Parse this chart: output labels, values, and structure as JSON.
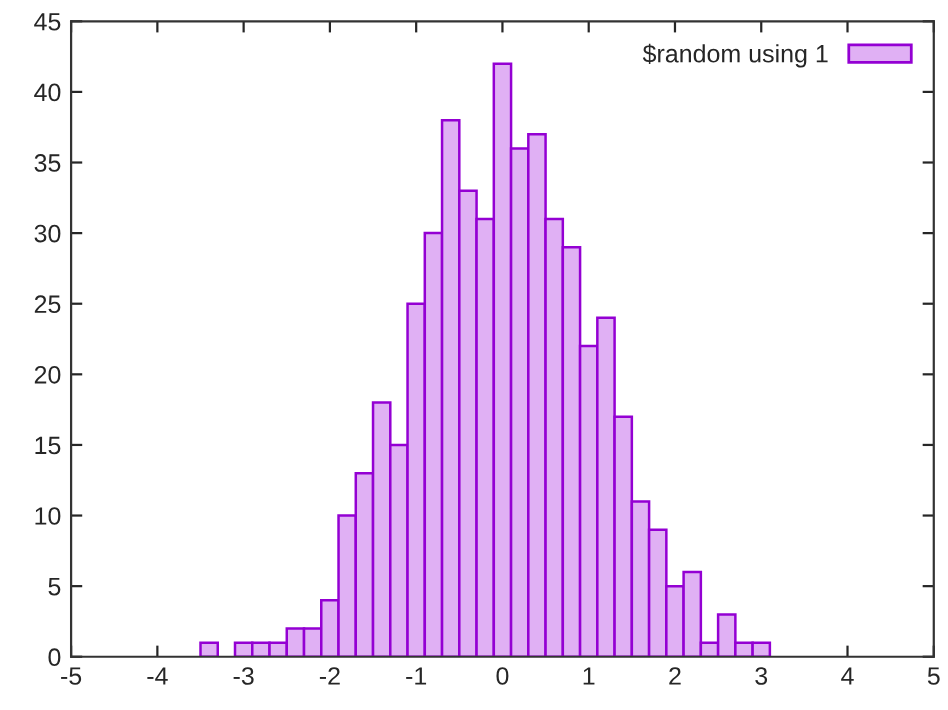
{
  "chart_data": {
    "type": "histogram",
    "bins": [
      -3.5,
      -3.3,
      -3.1,
      -2.9,
      -2.7,
      -2.5,
      -2.3,
      -2.1,
      -1.9,
      -1.7,
      -1.5,
      -1.3,
      -1.1,
      -0.9,
      -0.7,
      -0.5,
      -0.3,
      -0.1,
      0.1,
      0.3,
      0.5,
      0.7,
      0.9,
      1.1,
      1.3,
      1.5,
      1.7,
      1.9,
      2.1,
      2.3,
      2.5,
      2.7,
      2.9,
      3.1
    ],
    "series": [
      {
        "name": "$random using 1",
        "color": "#e0b0f4",
        "values": [
          1,
          0,
          1,
          1,
          1,
          2,
          2,
          4,
          10,
          13,
          18,
          15,
          25,
          30,
          38,
          33,
          31,
          42,
          36,
          37,
          31,
          29,
          22,
          24,
          17,
          11,
          9,
          5,
          6,
          1,
          3,
          1,
          1
        ]
      }
    ],
    "xlim": [
      -5,
      5
    ],
    "xticks": [
      -5,
      -4,
      -3,
      -2,
      -1,
      0,
      1,
      2,
      3,
      4,
      5
    ],
    "ylim": [
      0,
      45
    ],
    "yticks": [
      0,
      5,
      10,
      15,
      20,
      25,
      30,
      35,
      40,
      45
    ],
    "grid": false,
    "legend": "top right"
  }
}
